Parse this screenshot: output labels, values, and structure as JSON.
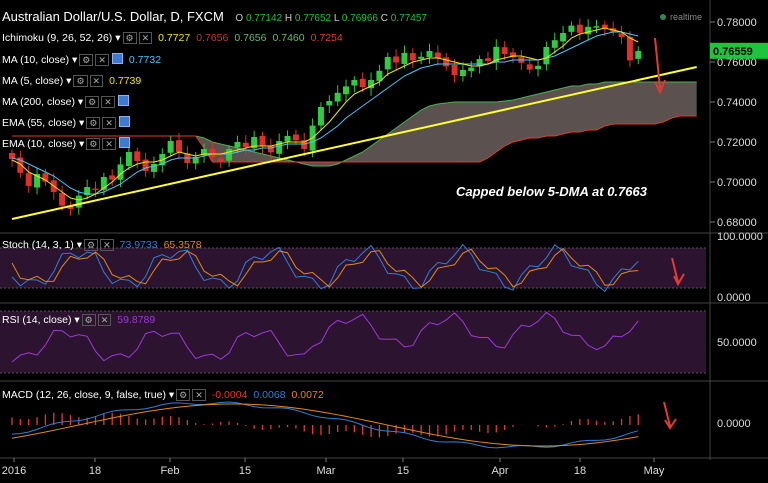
{
  "header": {
    "title": "Australian Dollar/U.S. Dollar, D, FXCM",
    "open_label": "O",
    "open": "0.77142",
    "high_label": "H",
    "high": "0.77652",
    "low_label": "L",
    "low": "0.76966",
    "close_label": "C",
    "close": "0.77457",
    "realtime": "realtime"
  },
  "indicators": [
    {
      "name": "Ichimoku (9, 26, 52, 26)",
      "values": [
        "0.7727",
        "0.7656",
        "0.7656",
        "0.7460",
        "0.7254"
      ],
      "colors": [
        "#f2e600",
        "#c0392b",
        "#66bb6a",
        "#66bb6a",
        "#e53935"
      ]
    },
    {
      "name": "MA (10, close)",
      "values": [
        "0.7732"
      ],
      "colors": [
        "#4fc3f7"
      ]
    },
    {
      "name": "MA (5, close)",
      "values": [
        "0.7739"
      ],
      "colors": [
        "#f2e600"
      ]
    },
    {
      "name": "MA (200, close)",
      "values": [],
      "colors": []
    },
    {
      "name": "EMA (55, close)",
      "values": [],
      "colors": []
    },
    {
      "name": "EMA (10, close)",
      "values": [],
      "colors": []
    }
  ],
  "annotation": "Capped below 5-DMA at 0.7663",
  "price_tag": "0.76559",
  "colors": {
    "up": "#2ecc40",
    "down": "#e0302a",
    "trend": "#ffff33",
    "cloud": "#6b5f5c",
    "accent": "#1ec43c"
  },
  "sub_panels": {
    "stoch": {
      "label": "Stoch (14, 3, 1)",
      "k": "73.9733",
      "d": "65.3578",
      "ticks": [
        "100.0000",
        "0.0000"
      ]
    },
    "rsi": {
      "label": "RSI (14, close)",
      "value": "59.8789",
      "ticks": [
        "50.0000"
      ]
    },
    "macd": {
      "label": "MACD (12, 26, close, 9, false, true)",
      "hist": "-0.0004",
      "macd": "0.0068",
      "signal": "0.0072",
      "ticks": [
        "0.0000"
      ]
    }
  },
  "chart_data": {
    "type": "candlestick",
    "y_ticks": [
      "0.78000",
      "0.76000",
      "0.74000",
      "0.72000",
      "0.70000",
      "0.68000"
    ],
    "y_tick_values": [
      0.78,
      0.76,
      0.74,
      0.72,
      0.7,
      0.68
    ],
    "ylim": [
      0.675,
      0.787
    ],
    "x_labels": [
      "2016",
      "18",
      "Feb",
      "15",
      "Mar",
      "15",
      "Apr",
      "18",
      "May"
    ],
    "candles_close": [
      0.7115,
      0.7046,
      0.698,
      0.704,
      0.7002,
      0.695,
      0.6882,
      0.6865,
      0.6932,
      0.6975,
      0.6962,
      0.7025,
      0.7012,
      0.7088,
      0.715,
      0.7105,
      0.7055,
      0.709,
      0.714,
      0.7205,
      0.715,
      0.7095,
      0.7125,
      0.7165,
      0.7125,
      0.7105,
      0.7165,
      0.72,
      0.7175,
      0.7225,
      0.7178,
      0.7148,
      0.7205,
      0.723,
      0.7208,
      0.7165,
      0.7282,
      0.7375,
      0.7405,
      0.7446,
      0.7478,
      0.751,
      0.7475,
      0.751,
      0.7556,
      0.7625,
      0.7598,
      0.7645,
      0.7608,
      0.7626,
      0.7655,
      0.762,
      0.7578,
      0.7535,
      0.756,
      0.7572,
      0.7615,
      0.7605,
      0.7676,
      0.764,
      0.7624,
      0.7596,
      0.7562,
      0.7581,
      0.7675,
      0.7709,
      0.7745,
      0.7782,
      0.7746,
      0.7776,
      0.7779,
      0.7768,
      0.7751,
      0.7725,
      0.7608,
      0.7655
    ],
    "ma5": [
      0.711,
      0.709,
      0.705,
      0.703,
      0.701,
      0.698,
      0.695,
      0.692,
      0.691,
      0.692,
      0.694,
      0.697,
      0.7,
      0.704,
      0.707,
      0.709,
      0.71,
      0.71,
      0.711,
      0.713,
      0.715,
      0.714,
      0.713,
      0.714,
      0.714,
      0.714,
      0.715,
      0.716,
      0.717,
      0.718,
      0.718,
      0.718,
      0.719,
      0.72,
      0.72,
      0.72,
      0.722,
      0.726,
      0.73,
      0.735,
      0.74,
      0.744,
      0.746,
      0.748,
      0.75,
      0.754,
      0.756,
      0.758,
      0.76,
      0.761,
      0.762,
      0.762,
      0.761,
      0.76,
      0.759,
      0.758,
      0.758,
      0.759,
      0.761,
      0.762,
      0.763,
      0.763,
      0.762,
      0.761,
      0.762,
      0.765,
      0.768,
      0.772,
      0.774,
      0.775,
      0.776,
      0.777,
      0.776,
      0.775,
      0.772,
      0.77
    ],
    "ma10": [
      0.712,
      0.711,
      0.709,
      0.707,
      0.705,
      0.703,
      0.7,
      0.697,
      0.695,
      0.694,
      0.694,
      0.695,
      0.697,
      0.699,
      0.702,
      0.705,
      0.707,
      0.708,
      0.709,
      0.711,
      0.712,
      0.712,
      0.712,
      0.713,
      0.714,
      0.714,
      0.714,
      0.715,
      0.716,
      0.716,
      0.717,
      0.717,
      0.718,
      0.719,
      0.719,
      0.719,
      0.72,
      0.722,
      0.725,
      0.728,
      0.732,
      0.735,
      0.738,
      0.741,
      0.744,
      0.747,
      0.75,
      0.753,
      0.755,
      0.757,
      0.758,
      0.759,
      0.759,
      0.759,
      0.759,
      0.759,
      0.759,
      0.759,
      0.76,
      0.76,
      0.761,
      0.761,
      0.761,
      0.761,
      0.762,
      0.763,
      0.765,
      0.767,
      0.769,
      0.771,
      0.773,
      0.774,
      0.775,
      0.775,
      0.774,
      0.773
    ],
    "cloud_top": [
      0.723,
      0.723,
      0.723,
      0.723,
      0.723,
      0.723,
      0.723,
      0.723,
      0.723,
      0.723,
      0.723,
      0.723,
      0.723,
      0.723,
      0.723,
      0.723,
      0.723,
      0.723,
      0.723,
      0.723,
      0.723,
      0.723,
      0.723,
      0.722,
      0.72,
      0.719,
      0.718,
      0.717,
      0.716,
      0.715,
      0.714,
      0.713,
      0.712,
      0.711,
      0.71,
      0.709,
      0.708,
      0.708,
      0.708,
      0.709,
      0.711,
      0.713,
      0.715,
      0.718,
      0.721,
      0.724,
      0.727,
      0.73,
      0.733,
      0.736,
      0.738,
      0.739,
      0.7395,
      0.74,
      0.74,
      0.74,
      0.74,
      0.74,
      0.74,
      0.7405,
      0.741,
      0.742,
      0.743,
      0.744,
      0.745,
      0.746,
      0.747,
      0.748,
      0.748,
      0.749,
      0.749,
      0.75,
      0.75,
      0.75,
      0.75,
      0.75,
      0.75,
      0.75,
      0.75,
      0.75,
      0.75,
      0.75,
      0.75
    ],
    "cloud_bot": [
      0.723,
      0.723,
      0.723,
      0.723,
      0.723,
      0.723,
      0.723,
      0.723,
      0.723,
      0.723,
      0.723,
      0.723,
      0.723,
      0.723,
      0.723,
      0.723,
      0.723,
      0.723,
      0.723,
      0.723,
      0.723,
      0.723,
      0.723,
      0.717,
      0.71,
      0.71,
      0.71,
      0.71,
      0.71,
      0.71,
      0.71,
      0.71,
      0.71,
      0.71,
      0.71,
      0.71,
      0.71,
      0.71,
      0.71,
      0.71,
      0.71,
      0.71,
      0.71,
      0.71,
      0.71,
      0.71,
      0.71,
      0.71,
      0.71,
      0.71,
      0.71,
      0.71,
      0.71,
      0.71,
      0.71,
      0.71,
      0.71,
      0.712,
      0.715,
      0.718,
      0.72,
      0.721,
      0.722,
      0.722,
      0.723,
      0.723,
      0.724,
      0.725,
      0.725,
      0.726,
      0.726,
      0.728,
      0.729,
      0.729,
      0.729,
      0.729,
      0.729,
      0.729,
      0.73,
      0.732,
      0.733,
      0.733,
      0.733
    ],
    "trendline": [
      [
        0,
        0.6815
      ],
      [
        82,
        0.7575
      ]
    ]
  }
}
